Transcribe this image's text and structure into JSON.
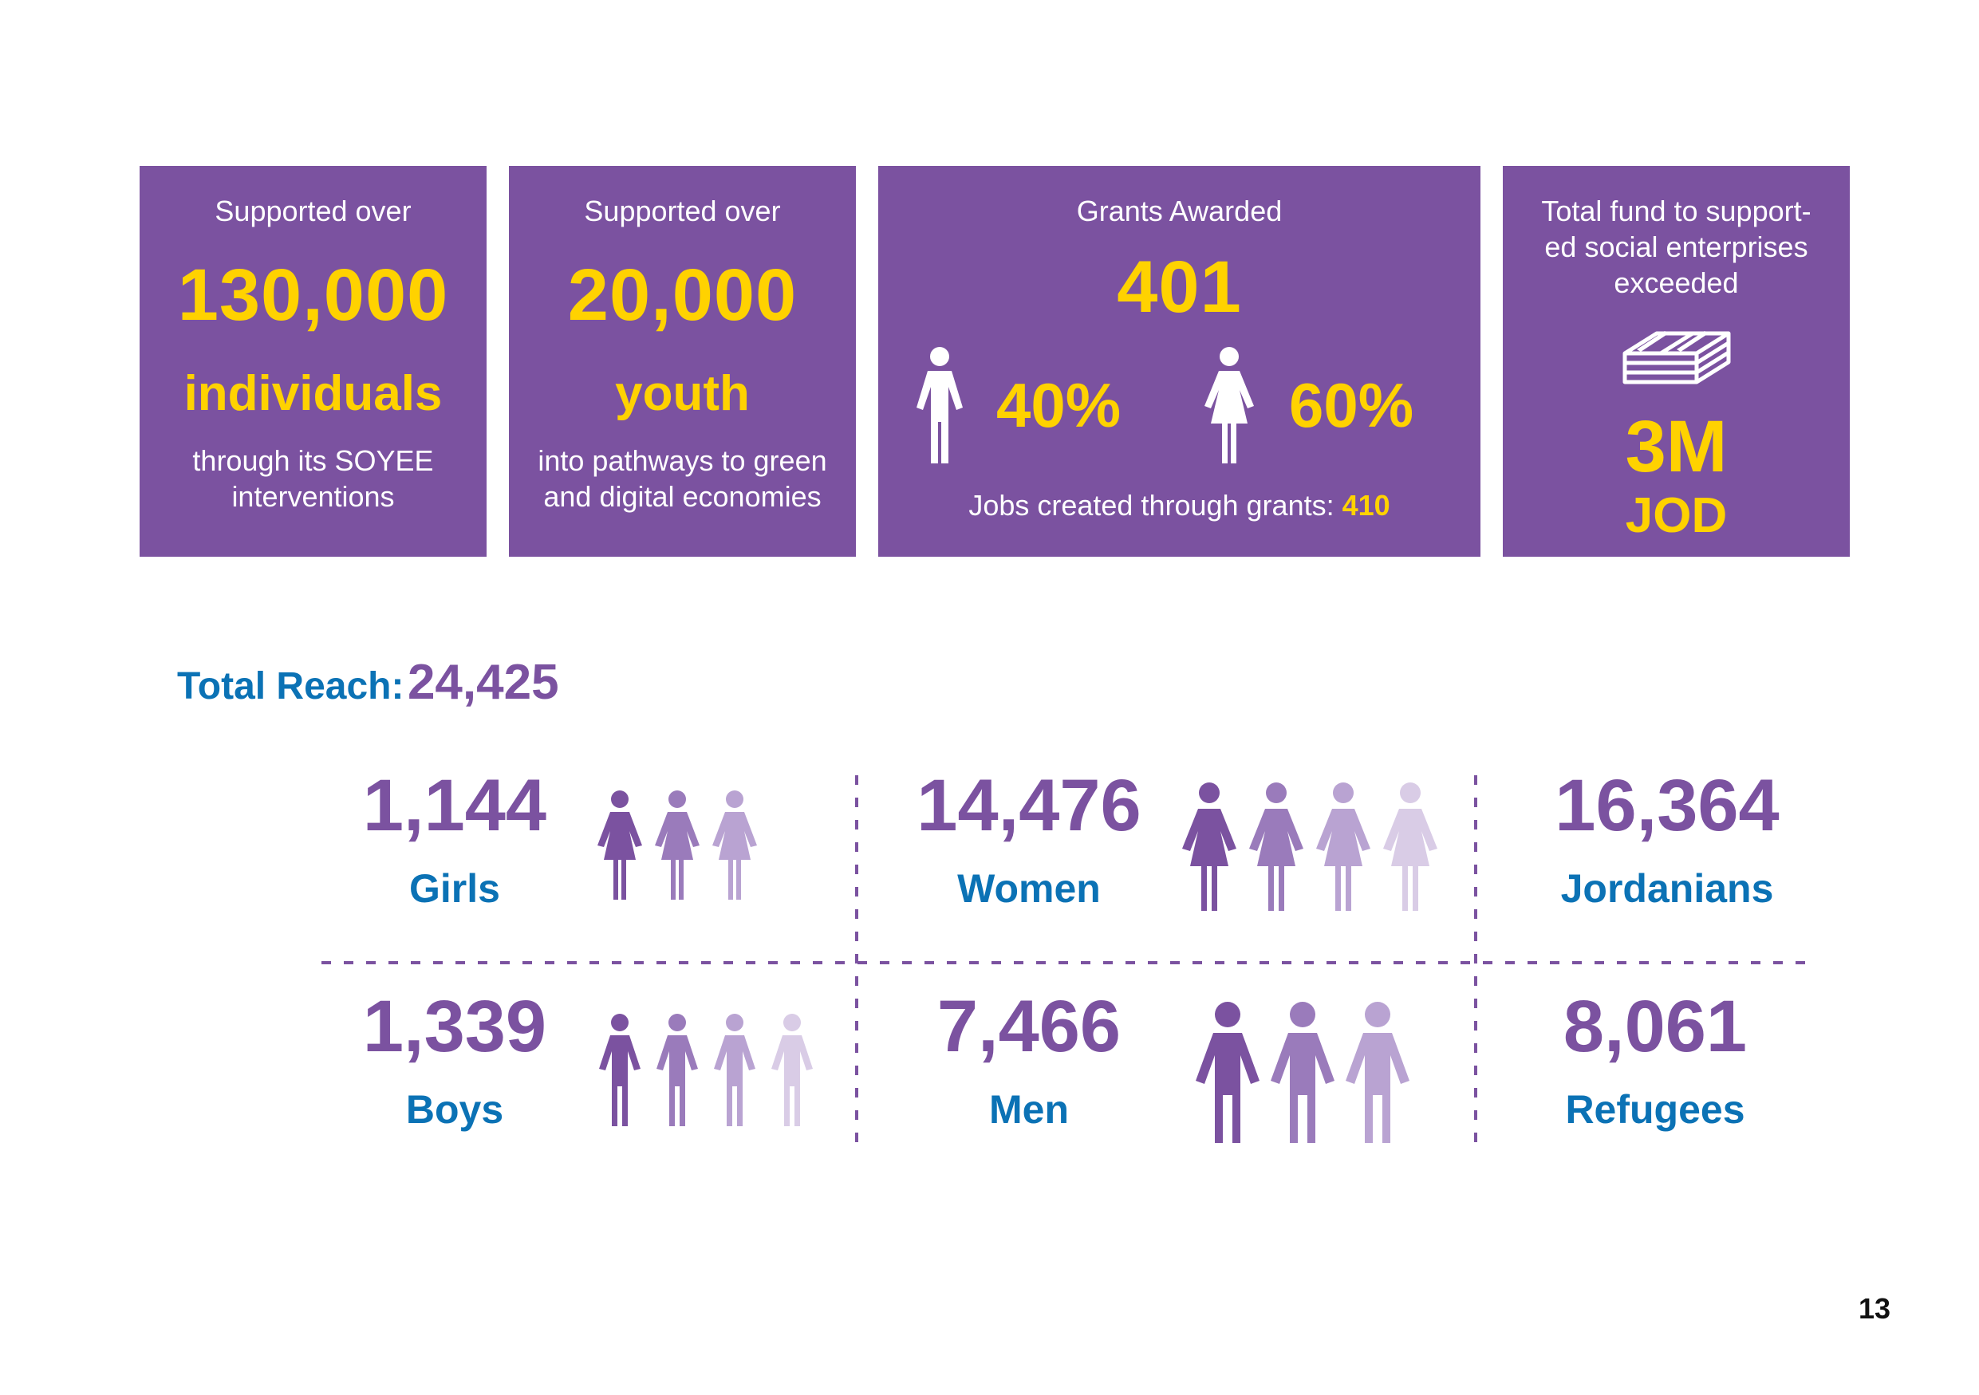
{
  "cards": [
    {
      "label": "Supported over",
      "figure": "130,000",
      "unit": "individuals",
      "desc_line1": "through its SOYEE",
      "desc_line2": "interventions"
    },
    {
      "label": "Supported over",
      "figure": "20,000",
      "unit": "youth",
      "desc_line1": "into pathways to green",
      "desc_line2": "and digital economies"
    }
  ],
  "grants": {
    "label": "Grants Awarded",
    "figure": "401",
    "male_percent": "40%",
    "female_percent": "60%",
    "jobs_label": "Jobs created through grants:",
    "jobs_value": "410",
    "icons": [
      "male-icon",
      "female-icon"
    ]
  },
  "fund": {
    "label_line1": "Total fund to support-",
    "label_line2": "ed social enterprises",
    "label_line3": "exceeded",
    "figure": "3M",
    "currency": "JOD",
    "icon": "money-stack-icon"
  },
  "reach": {
    "label": "Total Reach:",
    "value": "24,425",
    "groups": {
      "girls": {
        "value": "1,144",
        "label": "Girls"
      },
      "women": {
        "value": "14,476",
        "label": "Women"
      },
      "jordanians": {
        "value": "16,364",
        "label": "Jordanians"
      },
      "boys": {
        "value": "1,339",
        "label": "Boys"
      },
      "men": {
        "value": "7,466",
        "label": "Men"
      },
      "refugees": {
        "value": "8,061",
        "label": "Refugees"
      }
    }
  },
  "colors": {
    "card_purple": "#7b52a0",
    "yellow": "#ffd200",
    "blue": "#0b72b5",
    "people_shades": [
      "#7b52a0",
      "#9a7bbb",
      "#b9a3d2",
      "#d9cce6"
    ]
  },
  "page_number": "13"
}
